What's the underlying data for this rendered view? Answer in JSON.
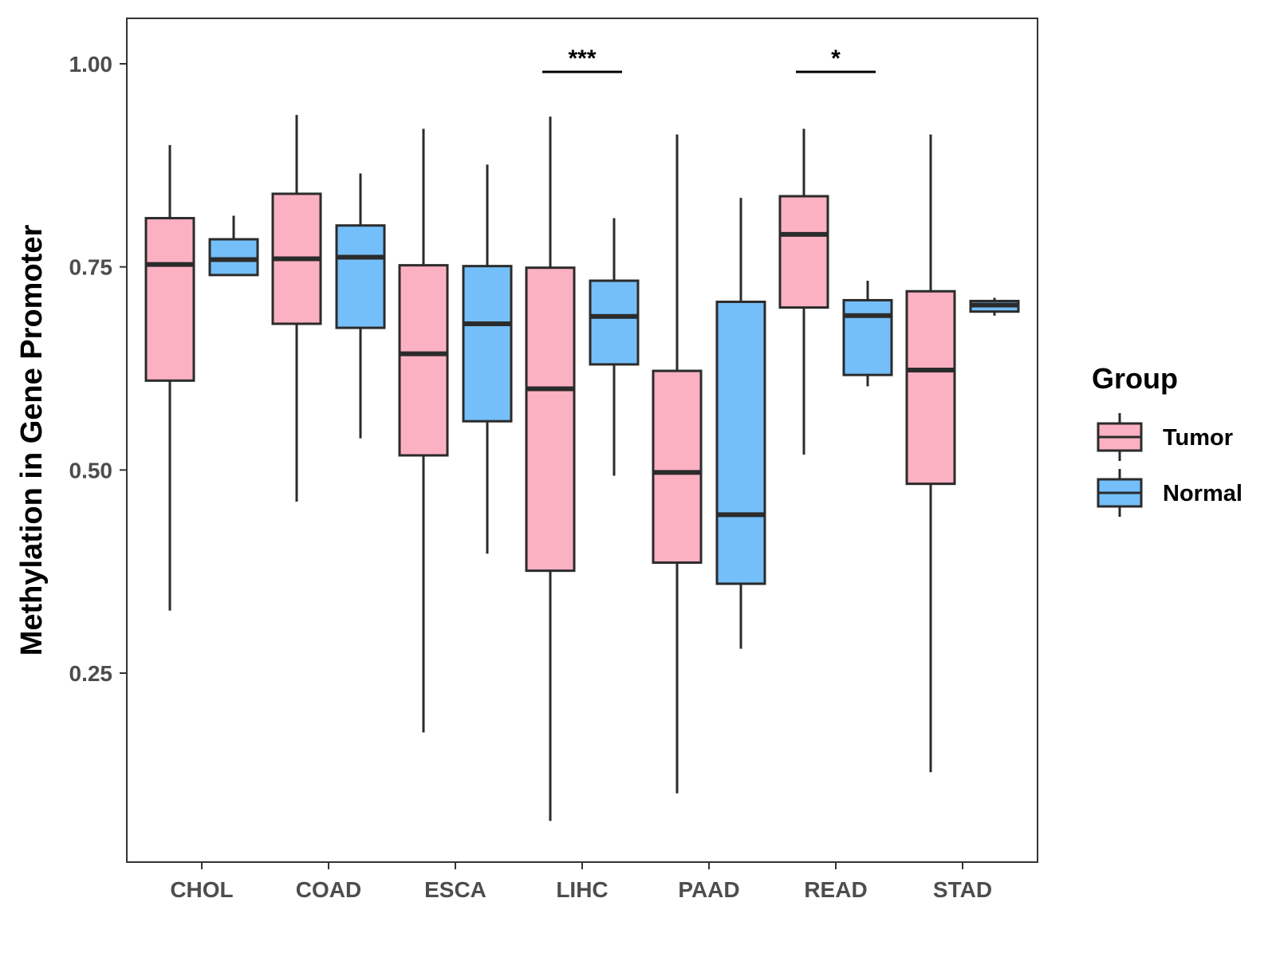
{
  "chart_data": {
    "type": "boxplot",
    "title": "",
    "xlabel": "",
    "ylabel": "Methylation in Gene Promoter",
    "ylim": [
      0.02,
      1.06
    ],
    "yticks": [
      0.25,
      0.5,
      0.75,
      1.0
    ],
    "ytick_labels": [
      "0.25",
      "0.50",
      "0.75",
      "1.00"
    ],
    "grid": false,
    "categories": [
      "CHOL",
      "COAD",
      "ESCA",
      "LIHC",
      "PAAD",
      "READ",
      "STAD"
    ],
    "series": [
      {
        "name": "Tumor",
        "color": "#FCB1C3",
        "boxes": [
          {
            "category": "CHOL",
            "min": 0.327,
            "q1": 0.61,
            "median": 0.753,
            "q3": 0.81,
            "max": 0.9
          },
          {
            "category": "COAD",
            "min": 0.461,
            "q1": 0.68,
            "median": 0.76,
            "q3": 0.84,
            "max": 0.937
          },
          {
            "category": "ESCA",
            "min": 0.177,
            "q1": 0.518,
            "median": 0.643,
            "q3": 0.752,
            "max": 0.92
          },
          {
            "category": "LIHC",
            "min": 0.068,
            "q1": 0.376,
            "median": 0.6,
            "q3": 0.749,
            "max": 0.935
          },
          {
            "category": "PAAD",
            "min": 0.102,
            "q1": 0.386,
            "median": 0.497,
            "q3": 0.622,
            "max": 0.913
          },
          {
            "category": "READ",
            "min": 0.519,
            "q1": 0.7,
            "median": 0.79,
            "q3": 0.837,
            "max": 0.92
          },
          {
            "category": "STAD",
            "min": 0.128,
            "q1": 0.483,
            "median": 0.623,
            "q3": 0.72,
            "max": 0.913
          }
        ]
      },
      {
        "name": "Normal",
        "color": "#74BFF9",
        "boxes": [
          {
            "category": "CHOL",
            "min": 0.74,
            "q1": 0.74,
            "median": 0.759,
            "q3": 0.784,
            "max": 0.813
          },
          {
            "category": "COAD",
            "min": 0.539,
            "q1": 0.675,
            "median": 0.762,
            "q3": 0.801,
            "max": 0.865
          },
          {
            "category": "ESCA",
            "min": 0.397,
            "q1": 0.56,
            "median": 0.68,
            "q3": 0.751,
            "max": 0.876
          },
          {
            "category": "LIHC",
            "min": 0.493,
            "q1": 0.63,
            "median": 0.689,
            "q3": 0.733,
            "max": 0.81
          },
          {
            "category": "PAAD",
            "min": 0.28,
            "q1": 0.36,
            "median": 0.445,
            "q3": 0.707,
            "max": 0.835
          },
          {
            "category": "READ",
            "min": 0.603,
            "q1": 0.617,
            "median": 0.69,
            "q3": 0.709,
            "max": 0.733
          },
          {
            "category": "STAD",
            "min": 0.69,
            "q1": 0.695,
            "median": 0.703,
            "q3": 0.708,
            "max": 0.712
          }
        ]
      }
    ],
    "annotations": [
      {
        "category": "LIHC",
        "label": "***",
        "y": 0.99
      },
      {
        "category": "READ",
        "label": "*",
        "y": 0.99
      }
    ],
    "legend": {
      "title": "Group",
      "placement": "right",
      "entries": [
        "Tumor",
        "Normal"
      ]
    }
  }
}
